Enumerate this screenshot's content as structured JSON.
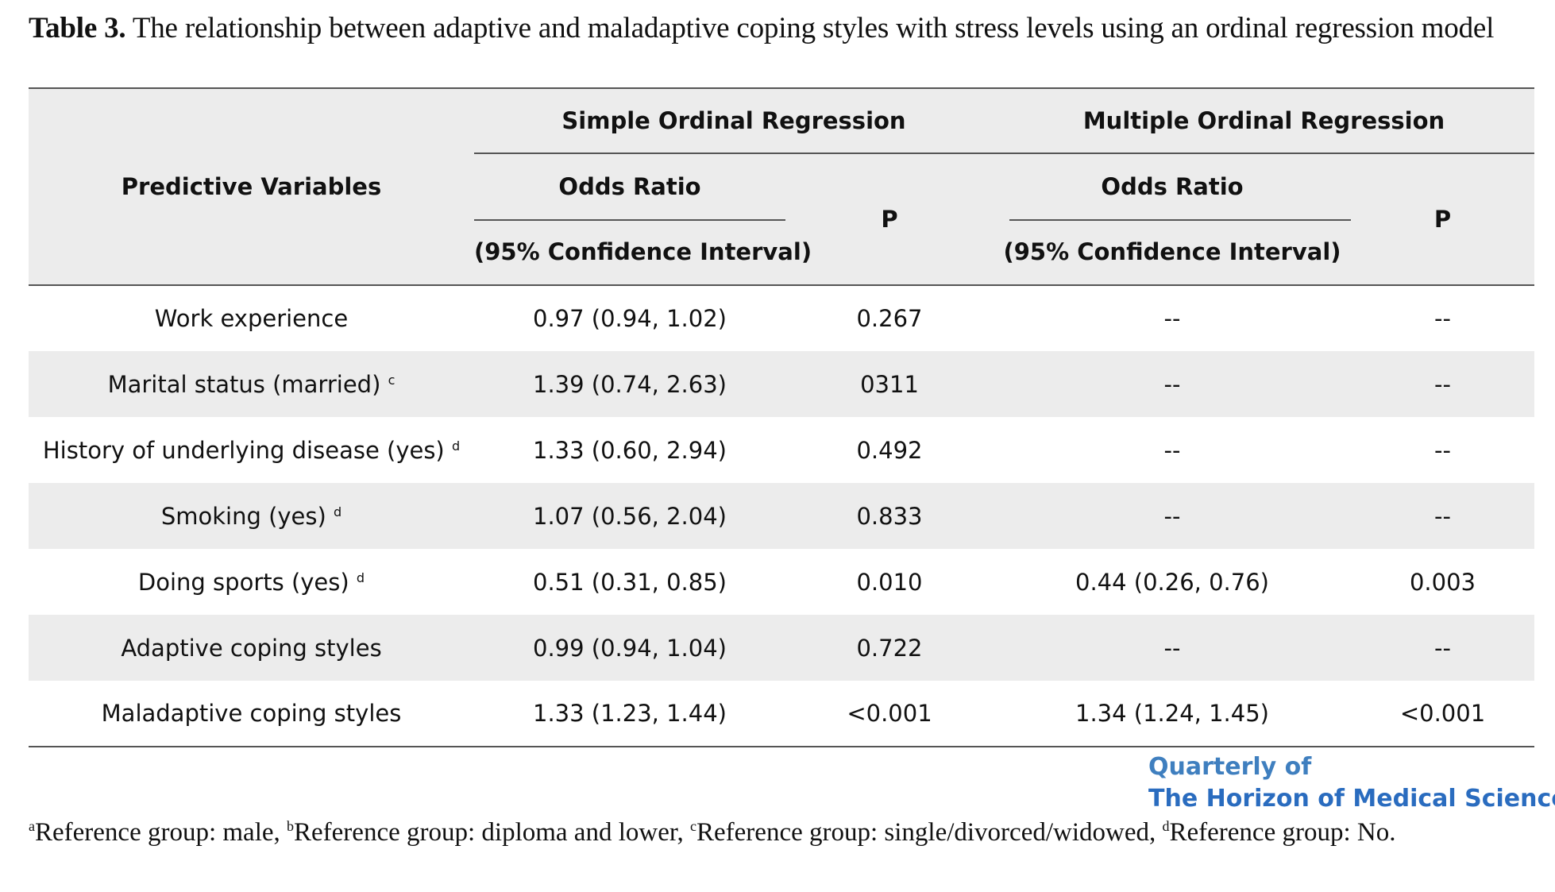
{
  "caption": {
    "label": "Table 3.",
    "text": " The relationship between adaptive and maladaptive coping styles with stress levels using an ordinal regression model"
  },
  "header": {
    "predictive_variables": "Predictive Variables",
    "simple_group": "Simple Ordinal Regression",
    "multiple_group": "Multiple Ordinal Regression",
    "odds_ratio": "Odds Ratio",
    "ci": "(95% Confidence Interval)",
    "p": "P"
  },
  "rows": [
    {
      "variable": "Work experience",
      "sup": "",
      "simple_or": "0.97 (0.94, 1.02)",
      "simple_p": "0.267",
      "multiple_or": "--",
      "multiple_p": "--"
    },
    {
      "variable": "Marital status (married) ",
      "sup": "c",
      "simple_or": "1.39 (0.74, 2.63)",
      "simple_p": "0311",
      "multiple_or": "--",
      "multiple_p": "--"
    },
    {
      "variable": "History of underlying disease (yes) ",
      "sup": "d",
      "simple_or": "1.33 (0.60, 2.94)",
      "simple_p": "0.492",
      "multiple_or": "--",
      "multiple_p": "--"
    },
    {
      "variable": "Smoking (yes) ",
      "sup": "d",
      "simple_or": "1.07 (0.56, 2.04)",
      "simple_p": "0.833",
      "multiple_or": "--",
      "multiple_p": "--"
    },
    {
      "variable": "Doing sports (yes) ",
      "sup": "d",
      "simple_or": "0.51 (0.31, 0.85)",
      "simple_p": "0.010",
      "multiple_or": "0.44 (0.26, 0.76)",
      "multiple_p": "0.003"
    },
    {
      "variable": "Adaptive coping styles",
      "sup": "",
      "simple_or": "0.99 (0.94, 1.04)",
      "simple_p": "0.722",
      "multiple_or": "--",
      "multiple_p": "--"
    },
    {
      "variable": "Maladaptive coping styles",
      "sup": "",
      "simple_or": "1.33 (1.23, 1.44)",
      "simple_p": "<0.001",
      "multiple_or": "1.34 (1.24, 1.45)",
      "multiple_p": "<0.001"
    }
  ],
  "watermark": {
    "line1": "Quarterly of",
    "line2": "The Horizon of Medical Sciences"
  },
  "footnote": {
    "a_sup": "a",
    "a_text": "Reference group: male, ",
    "b_sup": "b",
    "b_text": "Reference group: diploma and lower, ",
    "c_sup": "c",
    "c_text": "Reference group: single/divorced/widowed, ",
    "d_sup": "d",
    "d_text": "Reference group: No."
  },
  "colors": {
    "header_bg": "#ececec",
    "shade_bg": "#ececec",
    "rule": "#555555",
    "logo": "#3f7fbf"
  }
}
